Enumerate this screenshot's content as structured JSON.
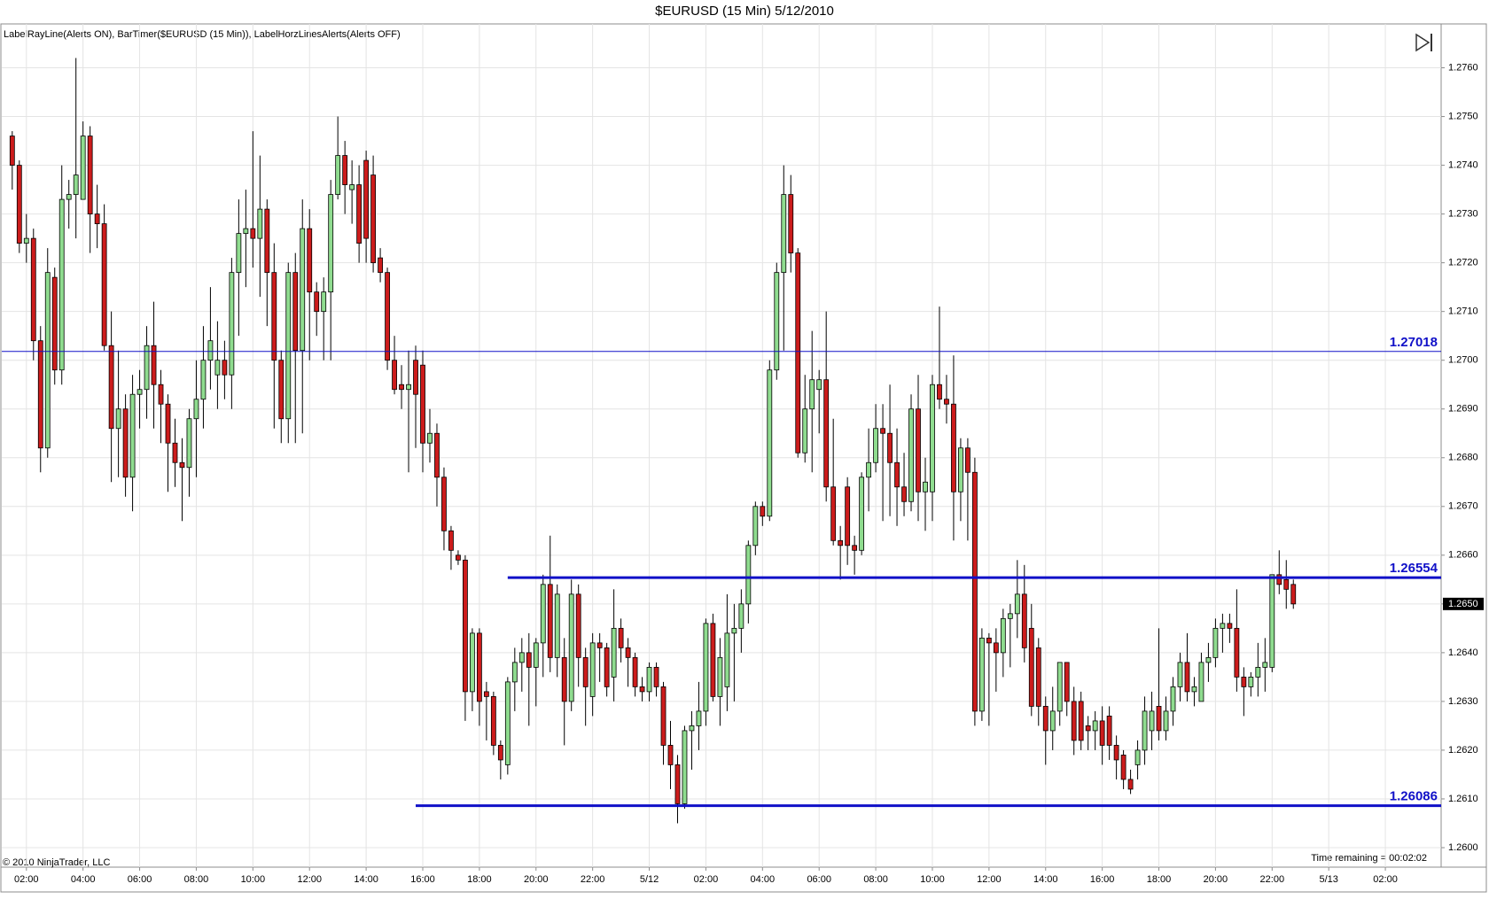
{
  "chart_data": {
    "type": "candlestick",
    "title": "$EURUSD (15 Min)  5/12/2010",
    "indicators": "LabelRayLine(Alerts ON), BarTimer($EURUSD (15 Min)), LabelHorzLinesAlerts(Alerts OFF)",
    "copyright": "© 2010 NinjaTrader, LLC",
    "timer": "Time remaining = 00:02:02",
    "up_color": "#8fdc8f",
    "down_color": "#cc1c1c",
    "line_color": "#1010c8",
    "grid": true,
    "xlim": [
      1.13,
      51.97
    ],
    "ylim": [
      1.2596,
      1.2769
    ],
    "xticks": [
      {
        "value": 2,
        "label": "02:00"
      },
      {
        "value": 4,
        "label": "04:00"
      },
      {
        "value": 6,
        "label": "06:00"
      },
      {
        "value": 8,
        "label": "08:00"
      },
      {
        "value": 10,
        "label": "10:00"
      },
      {
        "value": 12,
        "label": "12:00"
      },
      {
        "value": 14,
        "label": "14:00"
      },
      {
        "value": 16,
        "label": "16:00"
      },
      {
        "value": 18,
        "label": "18:00"
      },
      {
        "value": 20,
        "label": "20:00"
      },
      {
        "value": 22,
        "label": "22:00"
      },
      {
        "value": 24,
        "label": "5/12"
      },
      {
        "value": 26,
        "label": "02:00"
      },
      {
        "value": 28,
        "label": "04:00"
      },
      {
        "value": 30,
        "label": "06:00"
      },
      {
        "value": 32,
        "label": "08:00"
      },
      {
        "value": 34,
        "label": "10:00"
      },
      {
        "value": 36,
        "label": "12:00"
      },
      {
        "value": 38,
        "label": "14:00"
      },
      {
        "value": 40,
        "label": "16:00"
      },
      {
        "value": 42,
        "label": "18:00"
      },
      {
        "value": 44,
        "label": "20:00"
      },
      {
        "value": 46,
        "label": "22:00"
      },
      {
        "value": 48,
        "label": "5/13"
      },
      {
        "value": 50,
        "label": "02:00"
      }
    ],
    "yticks": [
      {
        "value": 1.26,
        "label": "1.2600"
      },
      {
        "value": 1.261,
        "label": "1.2610"
      },
      {
        "value": 1.262,
        "label": "1.2620"
      },
      {
        "value": 1.263,
        "label": "1.2630"
      },
      {
        "value": 1.264,
        "label": "1.2640"
      },
      {
        "value": 1.265,
        "label": "1.2650"
      },
      {
        "value": 1.266,
        "label": "1.2660"
      },
      {
        "value": 1.267,
        "label": "1.2670"
      },
      {
        "value": 1.268,
        "label": "1.2680"
      },
      {
        "value": 1.269,
        "label": "1.2690"
      },
      {
        "value": 1.27,
        "label": "1.2700"
      },
      {
        "value": 1.271,
        "label": "1.2710"
      },
      {
        "value": 1.272,
        "label": "1.2720"
      },
      {
        "value": 1.273,
        "label": "1.2730"
      },
      {
        "value": 1.274,
        "label": "1.2740"
      },
      {
        "value": 1.275,
        "label": "1.2750"
      },
      {
        "value": 1.276,
        "label": "1.2760"
      }
    ],
    "last_price": {
      "value": 1.265,
      "label": "1.2650"
    },
    "hlines": [
      {
        "value": 1.27018,
        "start": 1.13,
        "width": 1
      },
      {
        "value": 1.26554,
        "start": 19.0,
        "width": 3
      },
      {
        "value": 1.26086,
        "start": 15.75,
        "width": 3
      }
    ],
    "x": [
      1.5,
      1.75,
      2,
      2.25,
      2.5,
      2.75,
      3,
      3.25,
      3.5,
      3.75,
      4,
      4.25,
      4.5,
      4.75,
      5,
      5.25,
      5.5,
      5.75,
      6,
      6.25,
      6.5,
      6.75,
      7,
      7.25,
      7.5,
      7.75,
      8,
      8.25,
      8.5,
      8.75,
      9,
      9.25,
      9.5,
      9.75,
      10,
      10.25,
      10.5,
      10.75,
      11,
      11.25,
      11.5,
      11.75,
      12,
      12.25,
      12.5,
      12.75,
      13,
      13.25,
      13.5,
      13.75,
      14,
      14.25,
      14.5,
      14.75,
      15,
      15.25,
      15.5,
      15.75,
      16,
      16.25,
      16.5,
      16.75,
      17,
      17.25,
      17.5,
      17.75,
      18,
      18.25,
      18.5,
      18.75,
      19,
      19.25,
      19.5,
      19.75,
      20,
      20.25,
      20.5,
      20.75,
      21,
      21.25,
      21.5,
      21.75,
      22,
      22.25,
      22.5,
      22.75,
      23,
      23.25,
      23.5,
      23.75,
      24,
      24.25,
      24.5,
      24.75,
      25,
      25.25,
      25.5,
      25.75,
      26,
      26.25,
      26.5,
      26.75,
      27,
      27.25,
      27.5,
      27.75,
      28,
      28.25,
      28.5,
      28.75,
      29,
      29.25,
      29.5,
      29.75,
      30,
      30.25,
      30.5,
      30.75,
      31,
      31.25,
      31.5,
      31.75,
      32,
      32.25,
      32.5,
      32.75,
      33,
      33.25,
      33.5,
      33.75,
      34,
      34.25,
      34.5,
      34.75,
      35,
      35.25,
      35.5,
      35.75,
      36,
      36.25,
      36.5,
      36.75,
      37,
      37.25,
      37.5,
      37.75,
      38,
      38.25,
      38.5,
      38.75,
      39,
      39.25,
      39.5,
      39.75,
      40,
      40.25,
      40.5,
      40.75,
      41,
      41.25,
      41.5,
      41.75,
      42,
      42.25,
      42.5,
      42.75,
      43,
      43.25,
      43.5,
      43.75,
      44,
      44.25,
      44.5,
      44.75,
      45,
      45.25,
      45.5,
      45.75,
      46,
      46.25,
      46.5,
      46.75
    ],
    "open": [
      1.2746,
      1.274,
      1.2724,
      1.2725,
      1.2704,
      1.2682,
      1.2717,
      1.2698,
      1.2733,
      1.2734,
      1.2733,
      1.2746,
      1.273,
      1.2728,
      1.2703,
      1.2686,
      1.269,
      1.2676,
      1.2693,
      1.2694,
      1.2703,
      1.2695,
      1.2691,
      1.2683,
      1.2679,
      1.2678,
      1.2688,
      1.2692,
      1.27,
      1.2697,
      1.27,
      1.2697,
      1.2718,
      1.2726,
      1.2727,
      1.2725,
      1.2731,
      1.2718,
      1.27,
      1.2688,
      1.2718,
      1.2702,
      1.2727,
      1.2714,
      1.271,
      1.2714,
      1.2734,
      1.2742,
      1.2735,
      1.2736,
      1.2741,
      1.2738,
      1.2721,
      1.2718,
      1.27,
      1.2695,
      1.2694,
      1.27,
      1.2699,
      1.2683,
      1.2685,
      1.2676,
      1.2665,
      1.266,
      1.2659,
      1.2632,
      1.2644,
      1.2632,
      1.2631,
      1.2621,
      1.2617,
      1.2634,
      1.2638,
      1.264,
      1.2637,
      1.2642,
      1.2654,
      1.2639,
      1.2639,
      1.263,
      1.2652,
      1.2639,
      1.2631,
      1.2642,
      1.2641,
      1.2635,
      1.2645,
      1.2641,
      1.2639,
      1.2633,
      1.2632,
      1.2637,
      1.2633,
      1.2621,
      1.2617,
      1.2609,
      1.2624,
      1.2625,
      1.2628,
      1.2646,
      1.2631,
      1.2633,
      1.2644,
      1.2645,
      1.265,
      1.2662,
      1.267,
      1.2668,
      1.2698,
      1.2718,
      1.2734,
      1.2722,
      1.2681,
      1.269,
      1.2694,
      1.2696,
      1.2674,
      1.2663,
      1.2674,
      1.2662,
      1.2661,
      1.2676,
      1.2679,
      1.2686,
      1.2685,
      1.2679,
      1.2674,
      1.2671,
      1.269,
      1.2673,
      1.2673,
      1.2695,
      1.2692,
      1.2691,
      1.2673,
      1.2682,
      1.2677,
      1.2628,
      1.2643,
      1.2642,
      1.264,
      1.2647,
      1.2648,
      1.2652,
      1.2645,
      1.2641,
      1.2629,
      1.2624,
      1.2628,
      1.2638,
      1.263,
      1.263,
      1.2625,
      1.2624,
      1.2626,
      1.2627,
      1.2621,
      1.2619,
      1.2614,
      1.2617,
      1.262,
      1.2624,
      1.2629,
      1.2624,
      1.2628,
      1.2633,
      1.2638,
      1.2632,
      1.263,
      1.2638,
      1.2639,
      1.2645,
      1.2646,
      1.2645,
      1.2635,
      1.2633,
      1.2635,
      1.2637,
      1.2637,
      1.2656,
      1.2655,
      1.2654
    ],
    "high": [
      1.2747,
      1.2741,
      1.273,
      1.2727,
      1.2707,
      1.2723,
      1.2719,
      1.274,
      1.2737,
      1.2762,
      1.2749,
      1.2748,
      1.2736,
      1.2732,
      1.271,
      1.2702,
      1.2693,
      1.2697,
      1.2698,
      1.2707,
      1.2712,
      1.2698,
      1.2693,
      1.2688,
      1.2684,
      1.269,
      1.27,
      1.2707,
      1.2715,
      1.2708,
      1.2704,
      1.2721,
      1.2733,
      1.2735,
      1.2747,
      1.2742,
      1.2733,
      1.2724,
      1.2702,
      1.272,
      1.2722,
      1.2733,
      1.2731,
      1.2716,
      1.2717,
      1.2737,
      1.275,
      1.2745,
      1.2741,
      1.274,
      1.2743,
      1.2742,
      1.2723,
      1.2719,
      1.2705,
      1.2699,
      1.2702,
      1.2703,
      1.2702,
      1.269,
      1.2687,
      1.2678,
      1.2666,
      1.2661,
      1.266,
      1.2645,
      1.2645,
      1.2634,
      1.2632,
      1.2622,
      1.2635,
      1.2641,
      1.2643,
      1.2644,
      1.2643,
      1.2656,
      1.2664,
      1.2654,
      1.2643,
      1.2655,
      1.2654,
      1.2641,
      1.2644,
      1.2644,
      1.2642,
      1.2653,
      1.2647,
      1.2643,
      1.264,
      1.2635,
      1.2638,
      1.2638,
      1.2634,
      1.2626,
      1.2619,
      1.2625,
      1.2628,
      1.2634,
      1.2647,
      1.2648,
      1.2643,
      1.2652,
      1.265,
      1.2653,
      1.2663,
      1.2671,
      1.2671,
      1.27,
      1.272,
      1.274,
      1.2738,
      1.2723,
      1.2697,
      1.2706,
      1.2698,
      1.271,
      1.2688,
      1.2666,
      1.2676,
      1.2664,
      1.2677,
      1.2686,
      1.2691,
      1.2691,
      1.2695,
      1.2686,
      1.2681,
      1.2693,
      1.2697,
      1.268,
      1.2697,
      1.2711,
      1.2697,
      1.2701,
      1.2684,
      1.2684,
      1.268,
      1.2645,
      1.2644,
      1.2645,
      1.2649,
      1.265,
      1.2659,
      1.2658,
      1.265,
      1.2643,
      1.2631,
      1.2633,
      1.2638,
      1.2638,
      1.2633,
      1.2632,
      1.2627,
      1.2628,
      1.2629,
      1.2629,
      1.2623,
      1.262,
      1.2616,
      1.2622,
      1.2631,
      1.2632,
      1.2645,
      1.2631,
      1.2635,
      1.264,
      1.2644,
      1.2635,
      1.264,
      1.2642,
      1.2647,
      1.2648,
      1.2648,
      1.2653,
      1.2637,
      1.2636,
      1.2642,
      1.2643,
      1.2656,
      1.2661,
      1.2659,
      1.2655
    ],
    "low": [
      1.2735,
      1.2722,
      1.272,
      1.27,
      1.2677,
      1.268,
      1.2695,
      1.2695,
      1.2727,
      1.2725,
      1.2733,
      1.2722,
      1.2723,
      1.2702,
      1.2675,
      1.2676,
      1.2672,
      1.2669,
      1.2686,
      1.2688,
      1.2686,
      1.2683,
      1.2673,
      1.2674,
      1.2667,
      1.2672,
      1.2676,
      1.2686,
      1.2694,
      1.269,
      1.2692,
      1.269,
      1.2705,
      1.2715,
      1.2719,
      1.2713,
      1.2707,
      1.2686,
      1.2683,
      1.2683,
      1.2683,
      1.2685,
      1.27,
      1.2705,
      1.27,
      1.27,
      1.2733,
      1.273,
      1.2728,
      1.272,
      1.272,
      1.2718,
      1.2716,
      1.2698,
      1.2693,
      1.269,
      1.2677,
      1.2682,
      1.2677,
      1.2679,
      1.267,
      1.2661,
      1.2657,
      1.2658,
      1.2626,
      1.2628,
      1.2625,
      1.2622,
      1.2619,
      1.2614,
      1.2615,
      1.2628,
      1.2632,
      1.2625,
      1.2629,
      1.2635,
      1.2636,
      1.2635,
      1.2621,
      1.2628,
      1.2633,
      1.2625,
      1.2627,
      1.2634,
      1.2631,
      1.263,
      1.2638,
      1.2633,
      1.2631,
      1.263,
      1.263,
      1.2631,
      1.2617,
      1.2612,
      1.2605,
      1.2608,
      1.2616,
      1.262,
      1.2625,
      1.263,
      1.2625,
      1.2628,
      1.263,
      1.264,
      1.2646,
      1.266,
      1.2666,
      1.2667,
      1.2696,
      1.2702,
      1.2718,
      1.268,
      1.2679,
      1.2677,
      1.2685,
      1.2671,
      1.2662,
      1.2655,
      1.2658,
      1.2656,
      1.266,
      1.2669,
      1.2677,
      1.2667,
      1.2668,
      1.2666,
      1.2668,
      1.2669,
      1.2667,
      1.2665,
      1.2667,
      1.269,
      1.2687,
      1.2663,
      1.2667,
      1.2663,
      1.2625,
      1.2626,
      1.2625,
      1.2632,
      1.2635,
      1.2637,
      1.2643,
      1.2638,
      1.2627,
      1.2625,
      1.2617,
      1.262,
      1.2625,
      1.2627,
      1.2619,
      1.262,
      1.262,
      1.262,
      1.2617,
      1.2618,
      1.2614,
      1.2612,
      1.2611,
      1.2614,
      1.2617,
      1.262,
      1.2622,
      1.2622,
      1.2625,
      1.263,
      1.263,
      1.2629,
      1.263,
      1.2634,
      1.2637,
      1.264,
      1.2642,
      1.2632,
      1.2627,
      1.2631,
      1.2631,
      1.2632,
      1.2636,
      1.2652,
      1.2649,
      1.2649
    ],
    "close": [
      1.274,
      1.2724,
      1.2725,
      1.2704,
      1.2682,
      1.2718,
      1.2698,
      1.2733,
      1.2734,
      1.2738,
      1.2746,
      1.273,
      1.2728,
      1.2703,
      1.2686,
      1.269,
      1.2676,
      1.2693,
      1.2694,
      1.2703,
      1.2695,
      1.2691,
      1.2683,
      1.2679,
      1.2678,
      1.2688,
      1.2692,
      1.27,
      1.2704,
      1.27,
      1.2697,
      1.2718,
      1.2726,
      1.2727,
      1.2725,
      1.2731,
      1.2718,
      1.27,
      1.2688,
      1.2718,
      1.2702,
      1.2727,
      1.2714,
      1.271,
      1.2714,
      1.2734,
      1.2742,
      1.2736,
      1.2736,
      1.2724,
      1.2725,
      1.272,
      1.2718,
      1.27,
      1.2694,
      1.2694,
      1.2695,
      1.2693,
      1.2683,
      1.2685,
      1.2676,
      1.2665,
      1.2661,
      1.2659,
      1.2632,
      1.2644,
      1.263,
      1.2631,
      1.2621,
      1.2618,
      1.2634,
      1.2638,
      1.264,
      1.2637,
      1.2642,
      1.2654,
      1.2639,
      1.2652,
      1.263,
      1.2652,
      1.2639,
      1.2633,
      1.2642,
      1.2641,
      1.2633,
      1.2645,
      1.2641,
      1.2639,
      1.2633,
      1.2632,
      1.2637,
      1.2633,
      1.2621,
      1.2617,
      1.2609,
      1.2624,
      1.2625,
      1.2628,
      1.2646,
      1.2631,
      1.2639,
      1.2644,
      1.2645,
      1.265,
      1.2662,
      1.267,
      1.2668,
      1.2698,
      1.2718,
      1.2734,
      1.2722,
      1.2681,
      1.269,
      1.2696,
      1.2696,
      1.2674,
      1.2663,
      1.2662,
      1.2662,
      1.2661,
      1.2676,
      1.2679,
      1.2686,
      1.2685,
      1.2679,
      1.2674,
      1.2671,
      1.269,
      1.2673,
      1.2675,
      1.2695,
      1.2692,
      1.2691,
      1.2673,
      1.2682,
      1.2677,
      1.2628,
      1.2643,
      1.2642,
      1.264,
      1.2647,
      1.2648,
      1.2652,
      1.2641,
      1.2629,
      1.2629,
      1.2624,
      1.2628,
      1.2638,
      1.263,
      1.2622,
      1.2622,
      1.2624,
      1.2626,
      1.2621,
      1.2621,
      1.2618,
      1.2614,
      1.2612,
      1.262,
      1.2628,
      1.2628,
      1.2624,
      1.2628,
      1.2633,
      1.2638,
      1.2632,
      1.2633,
      1.2638,
      1.2639,
      1.2645,
      1.2646,
      1.2645,
      1.2635,
      1.2633,
      1.2635,
      1.2637,
      1.2638,
      1.2656,
      1.2654,
      1.2653,
      1.265
    ]
  }
}
